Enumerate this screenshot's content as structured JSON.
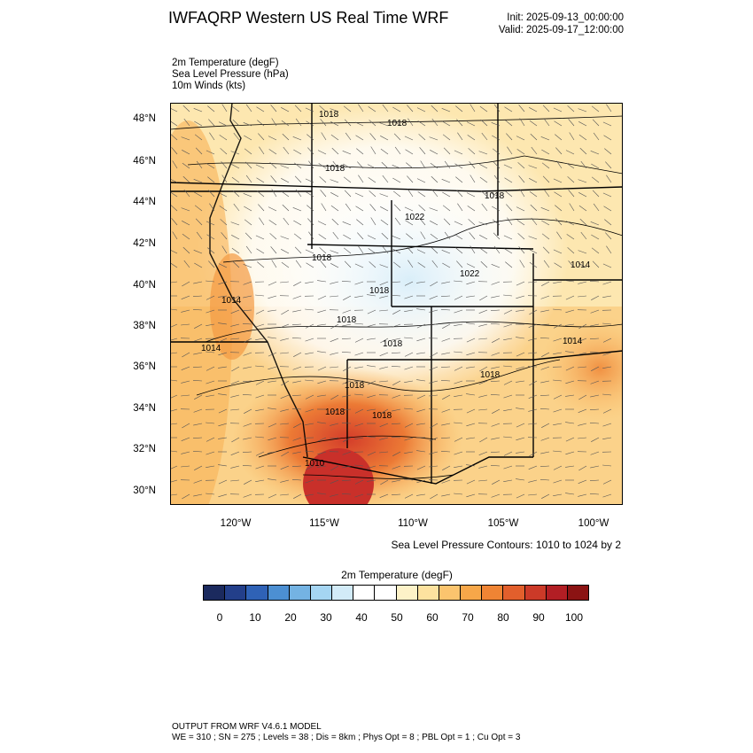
{
  "title": "IWFAQRP Western US Real Time WRF",
  "init": "Init: 2025-09-13_00:00:00",
  "valid": "Valid: 2025-09-17_12:00:00",
  "fields": [
    "2m Temperature   (degF)",
    "Sea Level Pressure   (hPa)",
    "10m Winds   (kts)"
  ],
  "lat_labels": [
    "48°N",
    "46°N",
    "44°N",
    "42°N",
    "40°N",
    "38°N",
    "36°N",
    "34°N",
    "32°N",
    "30°N"
  ],
  "lon_labels": [
    "120°W",
    "115°W",
    "110°W",
    "105°W",
    "100°W"
  ],
  "pressure_labels": [
    "1018",
    "1018",
    "1018",
    "1018",
    "1022",
    "1018",
    "1022",
    "1014",
    "1014",
    "1018",
    "1018",
    "1014",
    "1014",
    "1018",
    "1018",
    "1018",
    "1018",
    "1018",
    "1010"
  ],
  "contour_note": "Sea Level Pressure Contours: 1010 to 1024 by 2",
  "colorbar": {
    "title": "2m Temperature  (degF)",
    "labels": [
      "0",
      "10",
      "20",
      "30",
      "40",
      "50",
      "60",
      "70",
      "80",
      "90",
      "100"
    ],
    "colors": [
      "#1b2a5e",
      "#233f8a",
      "#2f62b6",
      "#4c8fd2",
      "#74b3e3",
      "#a5d5f2",
      "#d2ebf8",
      "#ffffff",
      "#ffffff",
      "#fdf2c8",
      "#fde29f",
      "#fbc46e",
      "#f7a749",
      "#ef8434",
      "#e25f2c",
      "#cc3a28",
      "#b21e24",
      "#8b1313"
    ]
  },
  "footer": {
    "line1": "OUTPUT FROM WRF V4.6.1 MODEL",
    "line2": "WE = 310 ; SN = 275 ; Levels = 38 ; Dis = 8km ; Phys Opt = 8 ; PBL Opt = 1 ; Cu Opt = 3"
  }
}
